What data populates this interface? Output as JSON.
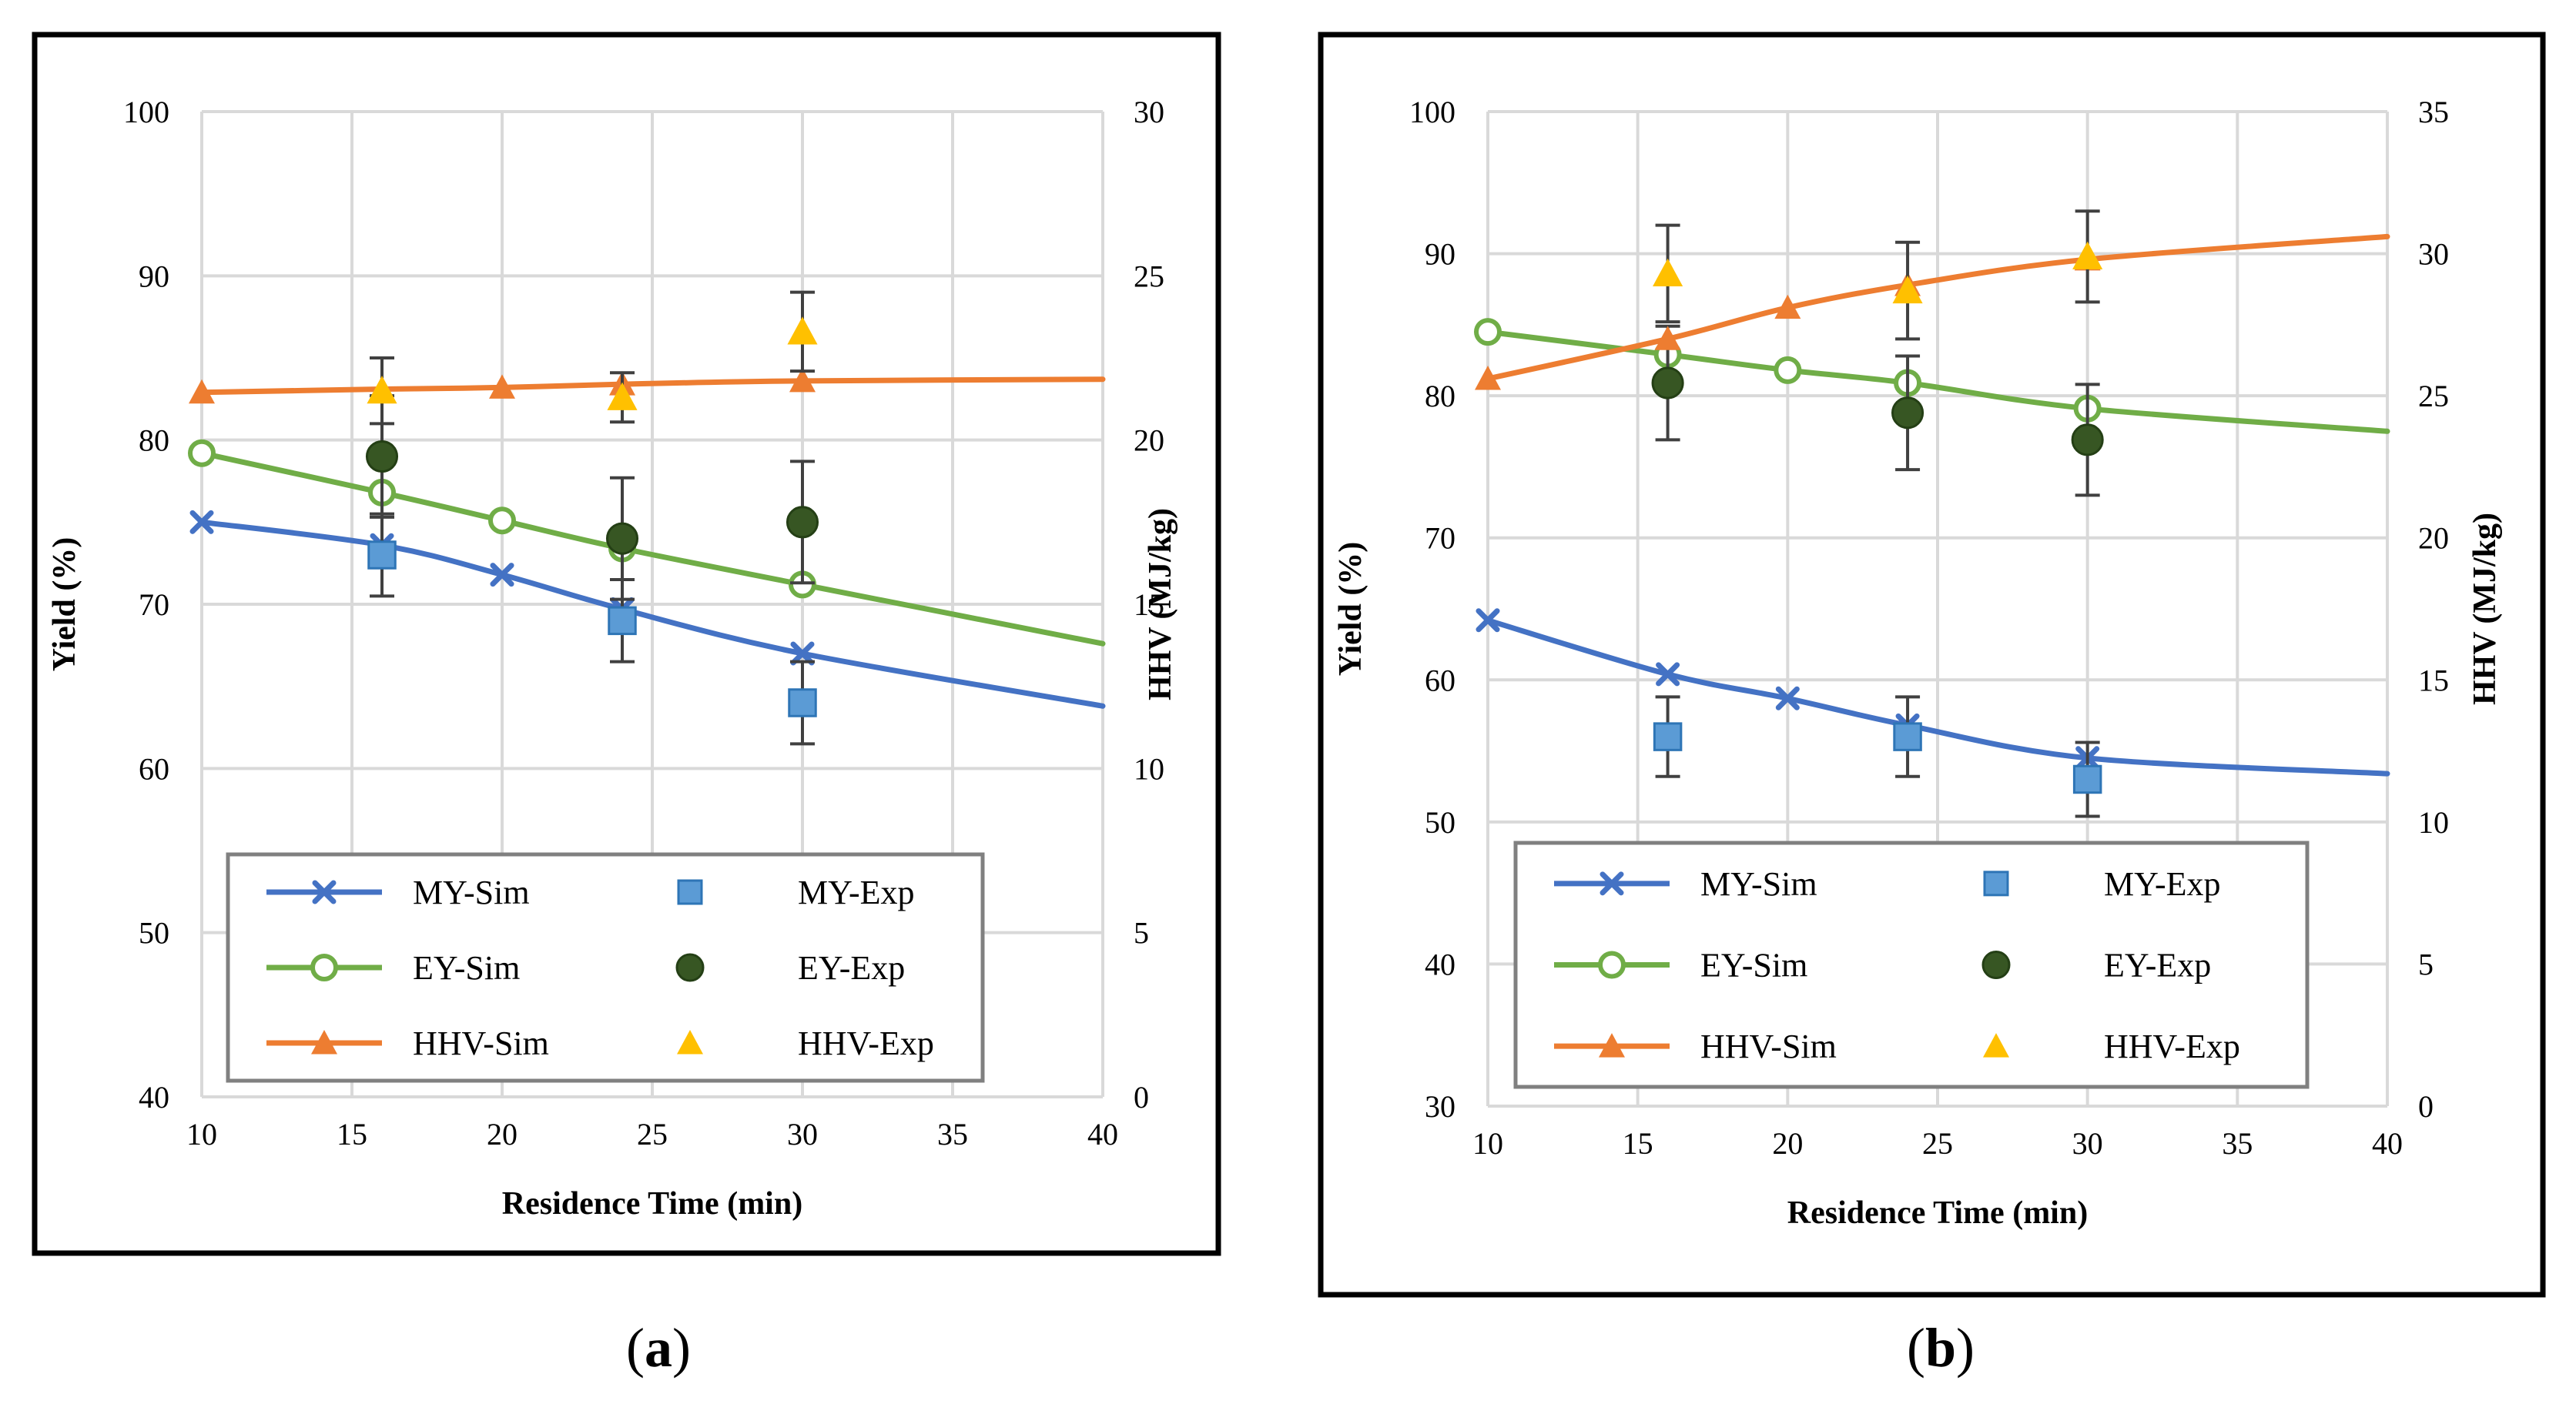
{
  "chart_data": [
    {
      "type": "line",
      "panel_label": "a",
      "xlabel": "Residence Time (min)",
      "ylabel": "Yield (%)",
      "y2label": "HHV (MJ/kg)",
      "xlim": [
        10,
        40
      ],
      "ylim": [
        40,
        100
      ],
      "y2lim": [
        0,
        30
      ],
      "xticks": [
        "10",
        "15",
        "20",
        "25",
        "30",
        "35",
        "40"
      ],
      "yticks": [
        "40",
        "50",
        "60",
        "70",
        "80",
        "90",
        "100"
      ],
      "y2ticks": [
        "0",
        "5",
        "10",
        "15",
        "20",
        "25",
        "30"
      ],
      "grid": true,
      "legend_position": "bottom",
      "series": [
        {
          "name": "MY-Sim",
          "kind": "line",
          "axis": "left",
          "color": "#4472C4",
          "marker": "x",
          "x": [
            10,
            16,
            20,
            24,
            30,
            40
          ],
          "y": [
            75.0,
            73.6,
            71.8,
            69.7,
            67.0,
            63.8
          ],
          "marker_x": [
            10,
            16,
            20,
            24,
            30
          ]
        },
        {
          "name": "MY-Exp",
          "kind": "points",
          "axis": "left",
          "color": "#5B9BD5",
          "marker": "square",
          "x": [
            16,
            24,
            30
          ],
          "y": [
            73.0,
            69.0,
            64.0
          ],
          "err": [
            2.5,
            2.5,
            2.5
          ]
        },
        {
          "name": "EY-Sim",
          "kind": "line",
          "axis": "left",
          "color": "#70AD47",
          "marker": "circle-open",
          "x": [
            10,
            16,
            20,
            24,
            30,
            40
          ],
          "y": [
            79.2,
            76.8,
            75.1,
            73.4,
            71.2,
            67.6
          ],
          "marker_x": [
            10,
            16,
            20,
            24,
            30
          ]
        },
        {
          "name": "EY-Exp",
          "kind": "points",
          "axis": "left",
          "color": "#375623",
          "marker": "circle",
          "x": [
            16,
            24,
            30
          ],
          "y": [
            79.0,
            74.0,
            75.0
          ],
          "err": [
            3.7,
            3.7,
            3.7
          ]
        },
        {
          "name": "HHV-Sim",
          "kind": "line",
          "axis": "right",
          "color": "#ED7D31",
          "marker": "triangle",
          "x": [
            10,
            16,
            20,
            24,
            30,
            40
          ],
          "y": [
            21.45,
            21.55,
            21.6,
            21.7,
            21.8,
            21.85
          ],
          "marker_x": [
            10,
            16,
            20,
            24,
            30
          ]
        },
        {
          "name": "HHV-Exp",
          "kind": "points",
          "axis": "right",
          "color": "#FFC000",
          "marker": "triangle",
          "x": [
            16,
            24,
            30
          ],
          "y": [
            21.5,
            21.3,
            23.3
          ],
          "err": [
            1.0,
            0.75,
            1.2
          ]
        }
      ]
    },
    {
      "type": "line",
      "panel_label": "b",
      "xlabel": "Residence Time (min)",
      "ylabel": "Yield (%)",
      "y2label": "HHV (MJ/kg)",
      "xlim": [
        10,
        40
      ],
      "ylim": [
        30,
        100
      ],
      "y2lim": [
        0,
        35
      ],
      "xticks": [
        "10",
        "15",
        "20",
        "25",
        "30",
        "35",
        "40"
      ],
      "yticks": [
        "30",
        "40",
        "50",
        "60",
        "70",
        "80",
        "90",
        "100"
      ],
      "y2ticks": [
        "0",
        "5",
        "10",
        "15",
        "20",
        "25",
        "30",
        "35"
      ],
      "grid": true,
      "legend_position": "bottom",
      "series": [
        {
          "name": "MY-Sim",
          "kind": "line",
          "axis": "left",
          "color": "#4472C4",
          "marker": "x",
          "x": [
            10,
            16,
            20,
            24,
            30,
            40
          ],
          "y": [
            64.2,
            60.4,
            58.7,
            56.8,
            54.5,
            53.4
          ],
          "marker_x": [
            10,
            16,
            20,
            24,
            30
          ]
        },
        {
          "name": "MY-Exp",
          "kind": "points",
          "axis": "left",
          "color": "#5B9BD5",
          "marker": "square",
          "x": [
            16,
            24,
            30
          ],
          "y": [
            56.0,
            56.0,
            53.0
          ],
          "err": [
            2.8,
            2.8,
            2.6
          ]
        },
        {
          "name": "EY-Sim",
          "kind": "line",
          "axis": "left",
          "color": "#70AD47",
          "marker": "circle-open",
          "x": [
            10,
            16,
            20,
            24,
            30,
            40
          ],
          "y": [
            84.5,
            82.9,
            81.8,
            80.9,
            79.1,
            77.5
          ],
          "marker_x": [
            10,
            16,
            20,
            24,
            30
          ]
        },
        {
          "name": "EY-Exp",
          "kind": "points",
          "axis": "left",
          "color": "#375623",
          "marker": "circle",
          "x": [
            16,
            24,
            30
          ],
          "y": [
            80.9,
            78.8,
            76.9
          ],
          "err": [
            4.0,
            4.0,
            3.9
          ]
        },
        {
          "name": "HHV-Sim",
          "kind": "line",
          "axis": "right",
          "color": "#ED7D31",
          "marker": "triangle",
          "x": [
            10,
            16,
            20,
            24,
            30,
            40
          ],
          "y": [
            25.6,
            27.0,
            28.1,
            28.9,
            29.8,
            30.6
          ],
          "marker_x": [
            10,
            16,
            20,
            24,
            30
          ]
        },
        {
          "name": "HHV-Exp",
          "kind": "points",
          "axis": "right",
          "color": "#FFC000",
          "marker": "triangle",
          "x": [
            16,
            24,
            30
          ],
          "y": [
            29.3,
            28.7,
            29.9
          ],
          "err": [
            1.7,
            1.7,
            1.6
          ]
        }
      ]
    }
  ]
}
